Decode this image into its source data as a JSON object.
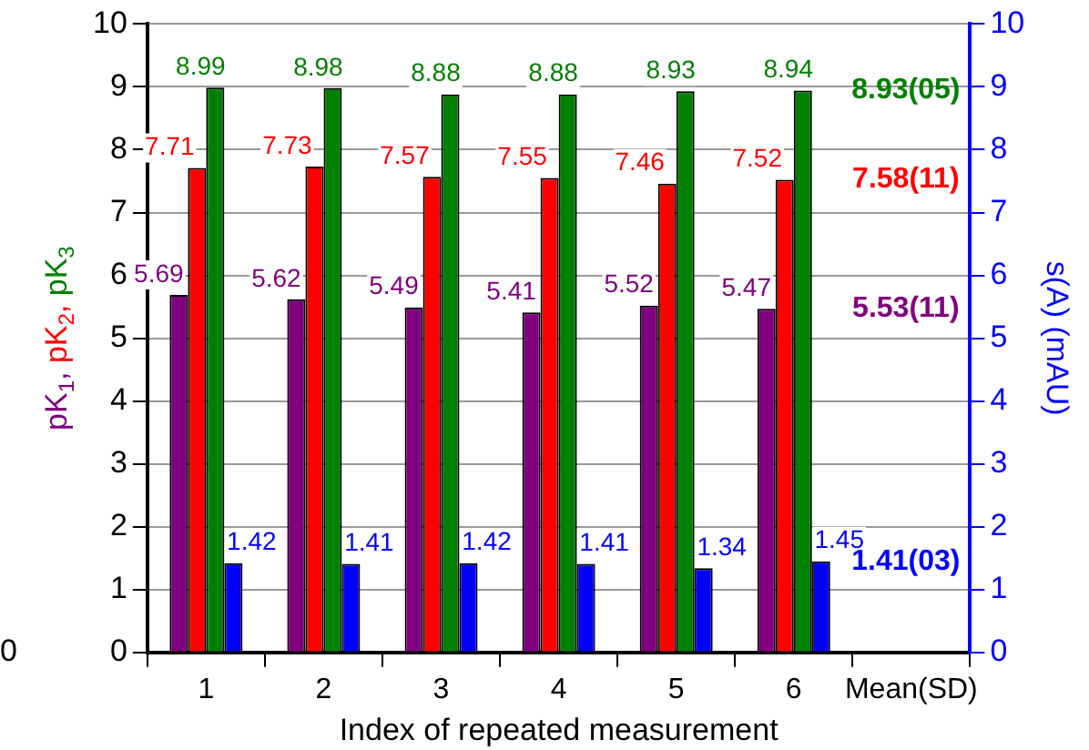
{
  "chart_data": {
    "type": "bar",
    "xlabel": "Index of repeated measurement",
    "ylabel": "pK$_{1}$, pK$_{2}$, pK$_{3}$",
    "y2label": "s(A) (mAU)",
    "categories": [
      "1",
      "2",
      "3",
      "4",
      "5",
      "6",
      "Mean(SD)"
    ],
    "series": [
      {
        "color": "#800080",
        "values": [
          5.69,
          5.62,
          5.49,
          5.41,
          5.52,
          5.47,
          null
        ]
      },
      {
        "color": "#ff0000",
        "values": [
          7.71,
          7.73,
          7.57,
          7.55,
          7.46,
          7.52,
          null
        ]
      },
      {
        "color": "#008000",
        "values": [
          8.99,
          8.98,
          8.88,
          8.88,
          8.93,
          8.94,
          null
        ]
      },
      {
        "color": "#0000ff",
        "axis": "y2",
        "values": [
          1.42,
          1.41,
          1.42,
          1.41,
          1.34,
          1.45,
          null
        ]
      }
    ],
    "ylim": [
      0,
      10
    ],
    "yticks": [
      0,
      1,
      2,
      3,
      4,
      5,
      6,
      7,
      8,
      9,
      10
    ],
    "y2lim": [
      0,
      10
    ],
    "y2ticks": [
      0,
      1,
      2,
      3,
      4,
      5,
      6,
      7,
      8,
      9,
      10
    ],
    "grid": "y",
    "legend": false,
    "data_labels": true,
    "annotations": [
      "5.53(11)",
      "7.58(11)",
      "8.93(05)",
      "1.41(03)",
      "0"
    ]
  }
}
